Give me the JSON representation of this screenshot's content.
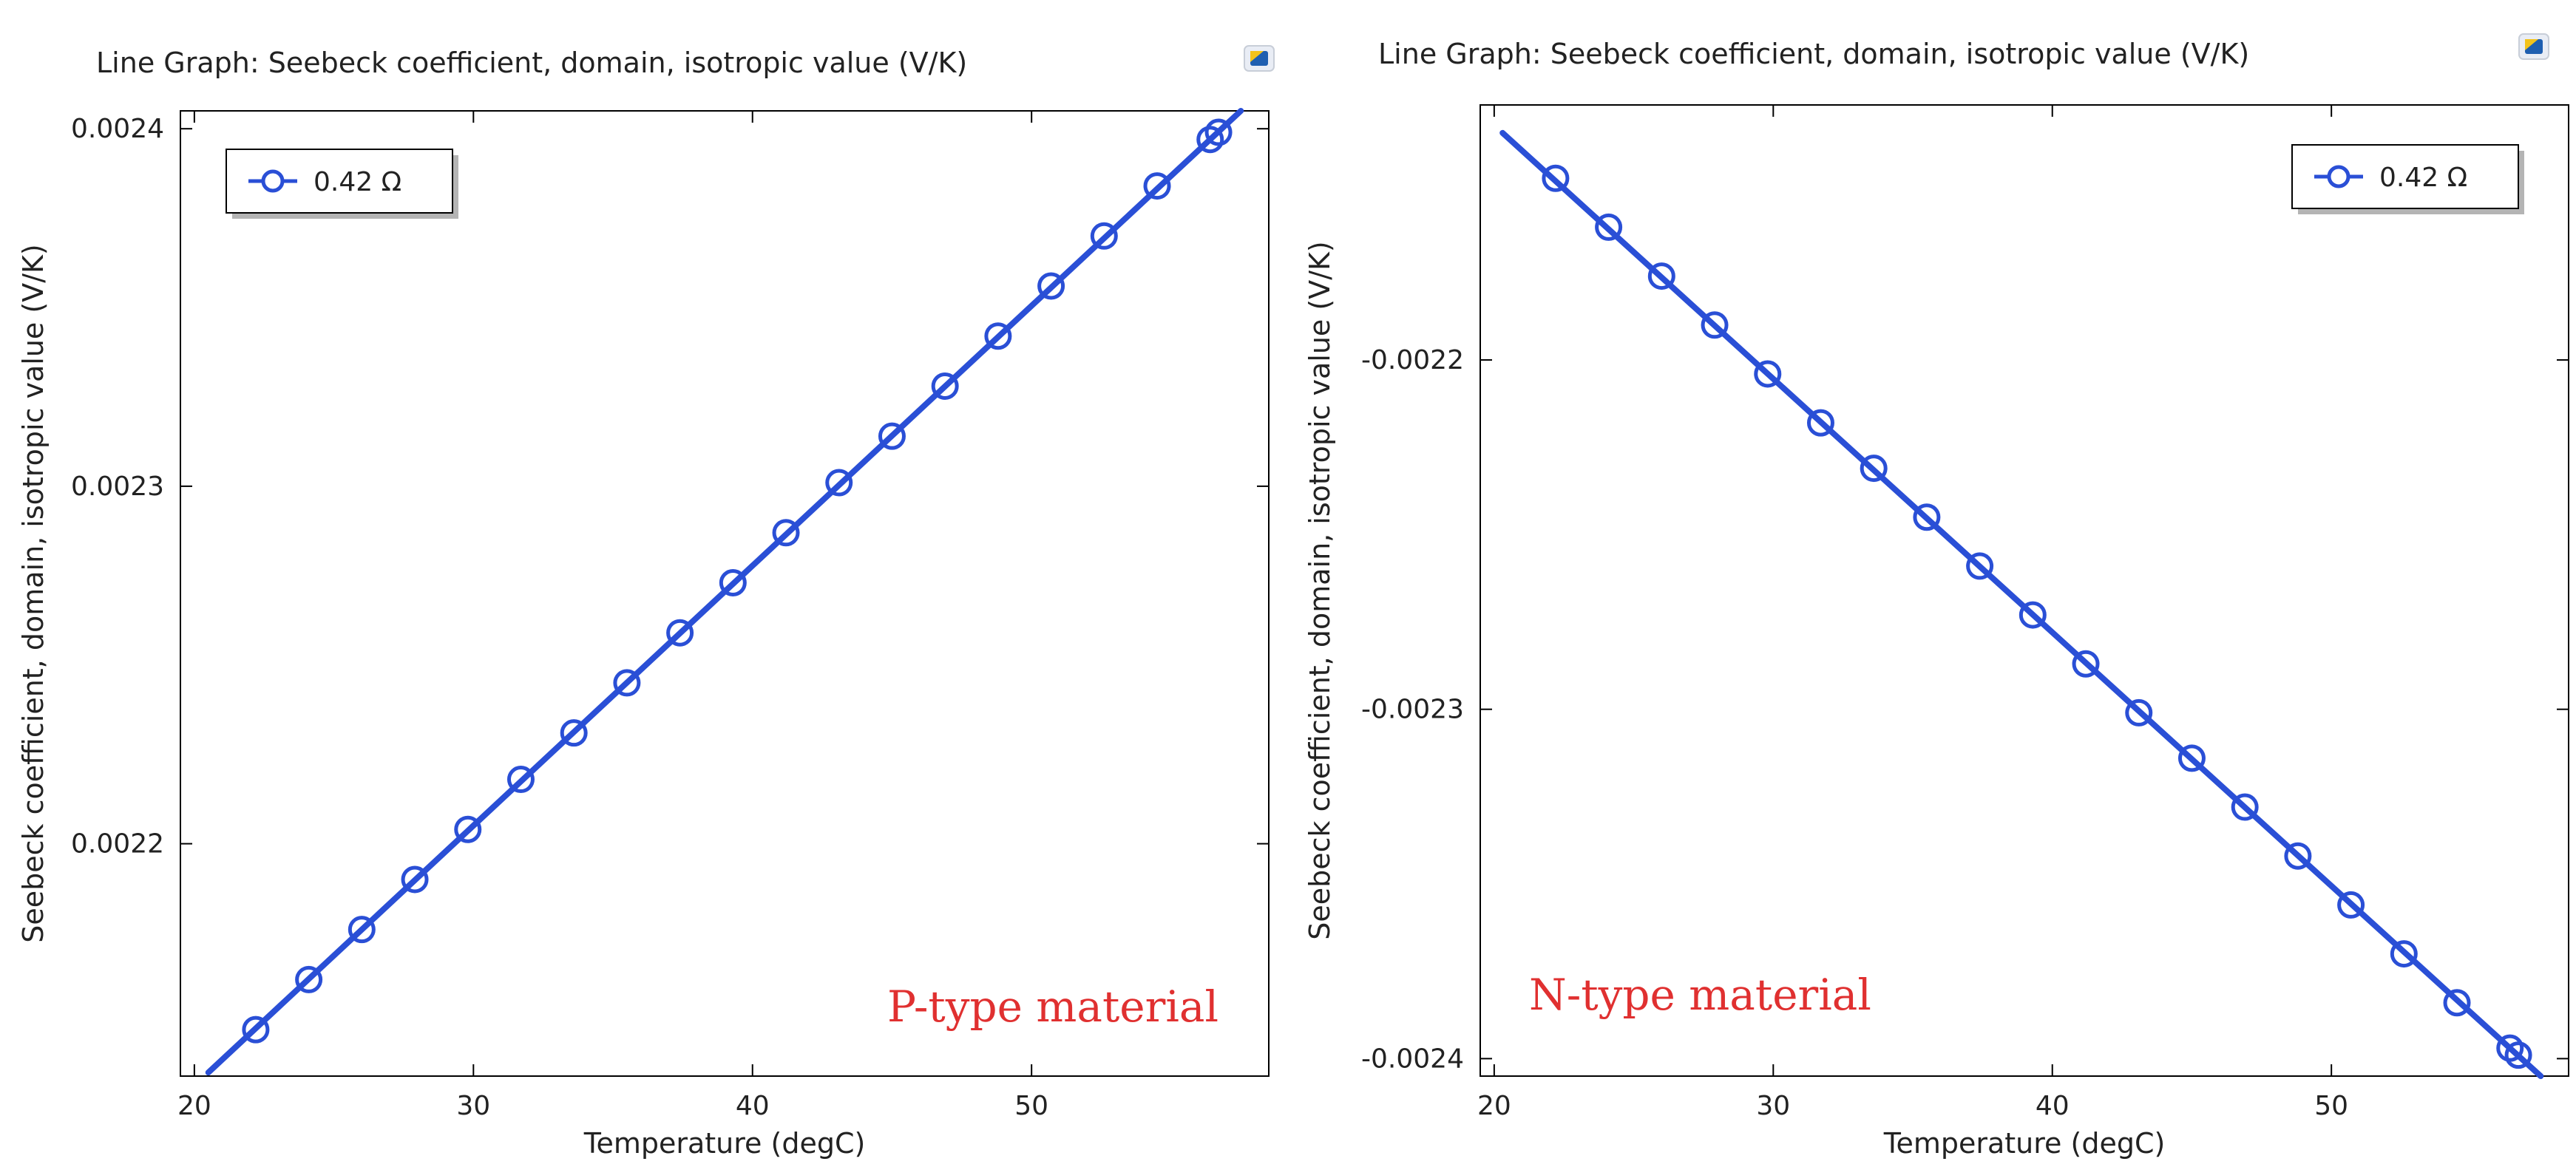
{
  "colors": {
    "series": "#2a4fd6",
    "annotation": "#e03030",
    "axis": "#000000",
    "legend_shadow": "#b4b4b4"
  },
  "chart_data": [
    {
      "type": "line",
      "title": "Line Graph: Seebeck coefficient, domain, isotropic value (V/K)",
      "xlabel": "Temperature (degC)",
      "ylabel": "Seebeck coefficient, domain, isotropic value (V/K)",
      "xlim": [
        19.5,
        58.5
      ],
      "ylim": [
        0.002135,
        0.002405
      ],
      "xticks": [
        20,
        30,
        40,
        50
      ],
      "xtick_labels": [
        "20",
        "30",
        "40",
        "50"
      ],
      "yticks": [
        0.0022,
        0.0023,
        0.0024
      ],
      "ytick_labels": [
        "0.0022",
        "0.0023",
        "0.0024"
      ],
      "grid": false,
      "legend": {
        "placement": "top-left",
        "entries": [
          "0.42 Ω"
        ]
      },
      "annotation": "P-type material",
      "series": [
        {
          "name": "0.42 Ω",
          "line_x": [
            20.5,
            57.5
          ],
          "line_y": [
            0.002136,
            0.002405
          ],
          "x": [
            22.2,
            24.1,
            26.0,
            27.9,
            29.8,
            31.7,
            33.6,
            35.5,
            37.4,
            39.3,
            41.2,
            43.1,
            45.0,
            46.9,
            48.8,
            50.7,
            52.6,
            54.5,
            56.4,
            56.7
          ],
          "y": [
            0.002148,
            0.002162,
            0.002176,
            0.00219,
            0.002204,
            0.002218,
            0.002231,
            0.002245,
            0.002259,
            0.002273,
            0.002287,
            0.002301,
            0.002314,
            0.002328,
            0.002342,
            0.002356,
            0.00237,
            0.002384,
            0.002397,
            0.002399
          ]
        }
      ]
    },
    {
      "type": "line",
      "title": "Line Graph: Seebeck coefficient, domain, isotropic value (V/K)",
      "xlabel": "Temperature (degC)",
      "ylabel": "Seebeck coefficient, domain, isotropic value (V/K)",
      "xlim": [
        19.5,
        58.5
      ],
      "ylim": [
        -0.002405,
        -0.002127
      ],
      "xticks": [
        20,
        30,
        40,
        50
      ],
      "xtick_labels": [
        "20",
        "30",
        "40",
        "50"
      ],
      "yticks": [
        -0.0022,
        -0.0023,
        -0.0024
      ],
      "ytick_labels": [
        "-0.0022",
        "-0.0023",
        "-0.0024"
      ],
      "grid": false,
      "legend": {
        "placement": "top-right",
        "entries": [
          "0.42 Ω"
        ]
      },
      "annotation": "N-type material",
      "series": [
        {
          "name": "0.42 Ω",
          "line_x": [
            20.3,
            57.5
          ],
          "line_y": [
            -0.002135,
            -0.002405
          ],
          "x": [
            22.2,
            24.1,
            26.0,
            27.9,
            29.8,
            31.7,
            33.6,
            35.5,
            37.4,
            39.3,
            41.2,
            43.1,
            45.0,
            46.9,
            48.8,
            50.7,
            52.6,
            54.5,
            56.4,
            56.7
          ],
          "y": [
            -0.002148,
            -0.002162,
            -0.002176,
            -0.00219,
            -0.002204,
            -0.002218,
            -0.002231,
            -0.002245,
            -0.002259,
            -0.002273,
            -0.002287,
            -0.002301,
            -0.002314,
            -0.002328,
            -0.002342,
            -0.002356,
            -0.00237,
            -0.002384,
            -0.002397,
            -0.002399
          ]
        }
      ]
    }
  ]
}
